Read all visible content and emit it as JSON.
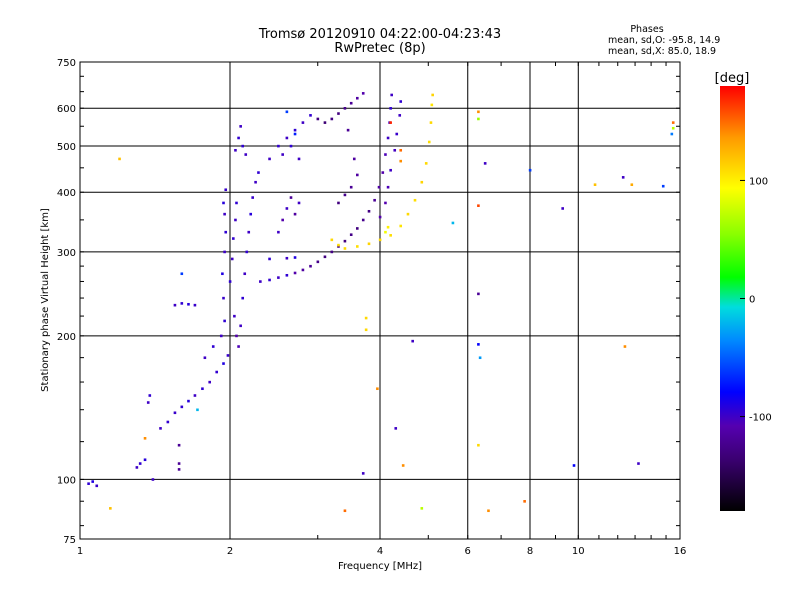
{
  "chart_data": {
    "type": "scatter",
    "title": "Tromsø 20120910 04:22:00-04:23:43",
    "subtitle": "RwPretec (8p)",
    "xlabel": "Frequency [MHz]",
    "ylabel": "Stationary phase Virtual Height [km]",
    "x_scale": "log",
    "y_scale": "log",
    "xlim": [
      1,
      16
    ],
    "ylim": [
      75,
      750
    ],
    "x_ticks": [
      {
        "value": 1,
        "label": "1"
      },
      {
        "value": 2,
        "label": "2"
      },
      {
        "value": 4,
        "label": "4"
      },
      {
        "value": 6,
        "label": "6"
      },
      {
        "value": 8,
        "label": "8"
      },
      {
        "value": 10,
        "label": "10"
      },
      {
        "value": 16,
        "label": "16"
      }
    ],
    "y_ticks": [
      {
        "value": 75,
        "label": "75"
      },
      {
        "value": 100,
        "label": "100"
      },
      {
        "value": 200,
        "label": "200"
      },
      {
        "value": 300,
        "label": "300"
      },
      {
        "value": 400,
        "label": "400"
      },
      {
        "value": 500,
        "label": "500"
      },
      {
        "value": 600,
        "label": "600"
      },
      {
        "value": 750,
        "label": "750"
      }
    ],
    "grid": true,
    "legend": {
      "title": "Phases",
      "lines": [
        "mean, sd,O: -95.8, 14.9",
        "mean, sd,X:  85.0, 18.9"
      ]
    },
    "colorbar": {
      "label": "[deg]",
      "min": -180,
      "max": 180,
      "ticks": [
        {
          "value": 100,
          "label": "100"
        },
        {
          "value": 0,
          "label": "0"
        },
        {
          "value": -100,
          "label": "-100"
        }
      ]
    },
    "series": [
      {
        "values": [
          {
            "x": 1.04,
            "y": 98,
            "c": -95
          },
          {
            "x": 1.06,
            "y": 99,
            "c": -90
          },
          {
            "x": 1.08,
            "y": 97,
            "c": -98
          },
          {
            "x": 1.3,
            "y": 106,
            "c": -100
          },
          {
            "x": 1.32,
            "y": 108,
            "c": -95
          },
          {
            "x": 1.35,
            "y": 110,
            "c": -92
          },
          {
            "x": 1.37,
            "y": 145,
            "c": -100
          },
          {
            "x": 1.38,
            "y": 150,
            "c": -96
          },
          {
            "x": 1.45,
            "y": 128,
            "c": -100
          },
          {
            "x": 1.5,
            "y": 132,
            "c": -96
          },
          {
            "x": 1.55,
            "y": 138,
            "c": -98
          },
          {
            "x": 1.6,
            "y": 142,
            "c": -95
          },
          {
            "x": 1.65,
            "y": 146,
            "c": -92
          },
          {
            "x": 1.7,
            "y": 150,
            "c": -100
          },
          {
            "x": 1.76,
            "y": 155,
            "c": -95
          },
          {
            "x": 1.82,
            "y": 160,
            "c": -100
          },
          {
            "x": 1.88,
            "y": 168,
            "c": -96
          },
          {
            "x": 1.94,
            "y": 175,
            "c": -90
          },
          {
            "x": 1.98,
            "y": 182,
            "c": -98
          },
          {
            "x": 1.55,
            "y": 232,
            "c": -100
          },
          {
            "x": 1.6,
            "y": 234,
            "c": -95
          },
          {
            "x": 1.65,
            "y": 233,
            "c": -92
          },
          {
            "x": 1.7,
            "y": 232,
            "c": -98
          },
          {
            "x": 1.6,
            "y": 270,
            "c": -60
          },
          {
            "x": 1.58,
            "y": 118,
            "c": -120
          },
          {
            "x": 1.35,
            "y": 122,
            "c": 140
          },
          {
            "x": 1.4,
            "y": 100,
            "c": -100
          },
          {
            "x": 1.15,
            "y": 87,
            "c": 120
          },
          {
            "x": 1.2,
            "y": 470,
            "c": 120
          },
          {
            "x": 1.72,
            "y": 140,
            "c": -20
          },
          {
            "x": 1.58,
            "y": 108,
            "c": -120
          },
          {
            "x": 1.58,
            "y": 105,
            "c": -120
          },
          {
            "x": 1.78,
            "y": 180,
            "c": -100
          },
          {
            "x": 1.85,
            "y": 190,
            "c": -95
          },
          {
            "x": 1.92,
            "y": 200,
            "c": -100
          },
          {
            "x": 1.95,
            "y": 215,
            "c": -95
          },
          {
            "x": 1.94,
            "y": 240,
            "c": -98
          },
          {
            "x": 1.93,
            "y": 270,
            "c": -90
          },
          {
            "x": 1.95,
            "y": 300,
            "c": -100
          },
          {
            "x": 1.96,
            "y": 330,
            "c": -95
          },
          {
            "x": 1.95,
            "y": 360,
            "c": -100
          },
          {
            "x": 1.94,
            "y": 380,
            "c": -92
          },
          {
            "x": 1.96,
            "y": 405,
            "c": -98
          },
          {
            "x": 2.0,
            "y": 260,
            "c": -95
          },
          {
            "x": 2.02,
            "y": 290,
            "c": -100
          },
          {
            "x": 2.03,
            "y": 320,
            "c": -96
          },
          {
            "x": 2.05,
            "y": 350,
            "c": -100
          },
          {
            "x": 2.06,
            "y": 380,
            "c": -95
          },
          {
            "x": 2.04,
            "y": 220,
            "c": -100
          },
          {
            "x": 2.06,
            "y": 200,
            "c": -110
          },
          {
            "x": 2.08,
            "y": 190,
            "c": -105
          },
          {
            "x": 2.1,
            "y": 210,
            "c": -100
          },
          {
            "x": 2.12,
            "y": 240,
            "c": -95
          },
          {
            "x": 2.14,
            "y": 270,
            "c": -100
          },
          {
            "x": 2.16,
            "y": 300,
            "c": -96
          },
          {
            "x": 2.18,
            "y": 330,
            "c": -100
          },
          {
            "x": 2.2,
            "y": 360,
            "c": -92
          },
          {
            "x": 2.22,
            "y": 390,
            "c": -98
          },
          {
            "x": 2.25,
            "y": 420,
            "c": -100
          },
          {
            "x": 2.28,
            "y": 440,
            "c": -95
          },
          {
            "x": 2.05,
            "y": 490,
            "c": -100
          },
          {
            "x": 2.08,
            "y": 520,
            "c": -96
          },
          {
            "x": 2.1,
            "y": 550,
            "c": -100
          },
          {
            "x": 2.12,
            "y": 500,
            "c": -95
          },
          {
            "x": 2.15,
            "y": 480,
            "c": -100
          },
          {
            "x": 2.3,
            "y": 260,
            "c": -100
          },
          {
            "x": 2.4,
            "y": 262,
            "c": -96
          },
          {
            "x": 2.5,
            "y": 265,
            "c": -100
          },
          {
            "x": 2.6,
            "y": 268,
            "c": -95
          },
          {
            "x": 2.7,
            "y": 271,
            "c": -110
          },
          {
            "x": 2.8,
            "y": 275,
            "c": -115
          },
          {
            "x": 2.9,
            "y": 280,
            "c": -120
          },
          {
            "x": 3.0,
            "y": 286,
            "c": -125
          },
          {
            "x": 3.1,
            "y": 293,
            "c": -130
          },
          {
            "x": 3.2,
            "y": 300,
            "c": -128
          },
          {
            "x": 3.3,
            "y": 308,
            "c": -125
          },
          {
            "x": 3.4,
            "y": 316,
            "c": -130
          },
          {
            "x": 3.5,
            "y": 326,
            "c": -126
          },
          {
            "x": 3.6,
            "y": 336,
            "c": -130
          },
          {
            "x": 3.7,
            "y": 350,
            "c": -124
          },
          {
            "x": 3.8,
            "y": 365,
            "c": -128
          },
          {
            "x": 3.9,
            "y": 385,
            "c": -120
          },
          {
            "x": 3.98,
            "y": 410,
            "c": -115
          },
          {
            "x": 4.05,
            "y": 440,
            "c": -110
          },
          {
            "x": 4.1,
            "y": 480,
            "c": -105
          },
          {
            "x": 4.15,
            "y": 520,
            "c": -100
          },
          {
            "x": 4.18,
            "y": 560,
            "c": -100
          },
          {
            "x": 4.2,
            "y": 600,
            "c": -95
          },
          {
            "x": 4.22,
            "y": 640,
            "c": -100
          },
          {
            "x": 2.4,
            "y": 290,
            "c": -95
          },
          {
            "x": 2.6,
            "y": 291,
            "c": -100
          },
          {
            "x": 2.7,
            "y": 292,
            "c": -90
          },
          {
            "x": 2.5,
            "y": 330,
            "c": -100
          },
          {
            "x": 2.55,
            "y": 350,
            "c": -110
          },
          {
            "x": 2.6,
            "y": 370,
            "c": -100
          },
          {
            "x": 2.65,
            "y": 390,
            "c": -120
          },
          {
            "x": 2.7,
            "y": 360,
            "c": -115
          },
          {
            "x": 2.75,
            "y": 380,
            "c": -100
          },
          {
            "x": 2.4,
            "y": 470,
            "c": -100
          },
          {
            "x": 2.5,
            "y": 500,
            "c": -96
          },
          {
            "x": 2.6,
            "y": 520,
            "c": -100
          },
          {
            "x": 2.7,
            "y": 540,
            "c": -95
          },
          {
            "x": 2.8,
            "y": 560,
            "c": -100
          },
          {
            "x": 2.9,
            "y": 580,
            "c": -96
          },
          {
            "x": 2.55,
            "y": 480,
            "c": -100
          },
          {
            "x": 2.65,
            "y": 500,
            "c": -95
          },
          {
            "x": 2.75,
            "y": 470,
            "c": -100
          },
          {
            "x": 2.6,
            "y": 590,
            "c": -60
          },
          {
            "x": 2.7,
            "y": 530,
            "c": -70
          },
          {
            "x": 3.0,
            "y": 570,
            "c": -130
          },
          {
            "x": 3.1,
            "y": 560,
            "c": -135
          },
          {
            "x": 3.2,
            "y": 570,
            "c": -128
          },
          {
            "x": 3.3,
            "y": 585,
            "c": -130
          },
          {
            "x": 3.4,
            "y": 600,
            "c": -125
          },
          {
            "x": 3.5,
            "y": 615,
            "c": -120
          },
          {
            "x": 3.6,
            "y": 630,
            "c": -115
          },
          {
            "x": 3.7,
            "y": 645,
            "c": -110
          },
          {
            "x": 3.3,
            "y": 380,
            "c": -130
          },
          {
            "x": 3.4,
            "y": 395,
            "c": -125
          },
          {
            "x": 3.5,
            "y": 410,
            "c": -120
          },
          {
            "x": 3.6,
            "y": 435,
            "c": -115
          },
          {
            "x": 3.45,
            "y": 540,
            "c": -120
          },
          {
            "x": 3.55,
            "y": 470,
            "c": -115
          },
          {
            "x": 4.0,
            "y": 355,
            "c": -110
          },
          {
            "x": 4.1,
            "y": 380,
            "c": -108
          },
          {
            "x": 4.15,
            "y": 410,
            "c": -105
          },
          {
            "x": 4.2,
            "y": 445,
            "c": -100
          },
          {
            "x": 4.28,
            "y": 490,
            "c": -102
          },
          {
            "x": 4.32,
            "y": 530,
            "c": -98
          },
          {
            "x": 4.38,
            "y": 580,
            "c": -100
          },
          {
            "x": 4.4,
            "y": 620,
            "c": -95
          },
          {
            "x": 3.4,
            "y": 305,
            "c": 110
          },
          {
            "x": 3.6,
            "y": 308,
            "c": 108
          },
          {
            "x": 3.8,
            "y": 312,
            "c": 112
          },
          {
            "x": 4.0,
            "y": 318,
            "c": 110
          },
          {
            "x": 4.2,
            "y": 325,
            "c": 108
          },
          {
            "x": 4.4,
            "y": 340,
            "c": 105
          },
          {
            "x": 4.55,
            "y": 360,
            "c": 110
          },
          {
            "x": 4.7,
            "y": 385,
            "c": 108
          },
          {
            "x": 4.85,
            "y": 420,
            "c": 112
          },
          {
            "x": 4.95,
            "y": 460,
            "c": 110
          },
          {
            "x": 5.02,
            "y": 510,
            "c": 108
          },
          {
            "x": 5.06,
            "y": 560,
            "c": 110
          },
          {
            "x": 5.08,
            "y": 610,
            "c": 105
          },
          {
            "x": 5.1,
            "y": 640,
            "c": 112
          },
          {
            "x": 3.2,
            "y": 318,
            "c": 110
          },
          {
            "x": 3.3,
            "y": 310,
            "c": 108
          },
          {
            "x": 3.75,
            "y": 218,
            "c": 110
          },
          {
            "x": 3.75,
            "y": 206,
            "c": 110
          },
          {
            "x": 4.2,
            "y": 560,
            "c": 170
          },
          {
            "x": 4.4,
            "y": 490,
            "c": 150
          },
          {
            "x": 4.4,
            "y": 465,
            "c": 140
          },
          {
            "x": 4.1,
            "y": 330,
            "c": 90
          },
          {
            "x": 4.15,
            "y": 338,
            "c": 100
          },
          {
            "x": 3.95,
            "y": 155,
            "c": 140
          },
          {
            "x": 4.45,
            "y": 107,
            "c": 140
          },
          {
            "x": 4.85,
            "y": 87,
            "c": 70
          },
          {
            "x": 4.65,
            "y": 195,
            "c": -100
          },
          {
            "x": 4.3,
            "y": 128,
            "c": -100
          },
          {
            "x": 3.7,
            "y": 103,
            "c": -100
          },
          {
            "x": 3.4,
            "y": 86,
            "c": 150
          },
          {
            "x": 5.6,
            "y": 345,
            "c": -20
          },
          {
            "x": 6.3,
            "y": 590,
            "c": 140
          },
          {
            "x": 6.3,
            "y": 570,
            "c": 60
          },
          {
            "x": 6.5,
            "y": 460,
            "c": -100
          },
          {
            "x": 6.3,
            "y": 375,
            "c": 160
          },
          {
            "x": 6.3,
            "y": 245,
            "c": -120
          },
          {
            "x": 6.3,
            "y": 192,
            "c": -80
          },
          {
            "x": 6.35,
            "y": 180,
            "c": -30
          },
          {
            "x": 6.3,
            "y": 118,
            "c": 110
          },
          {
            "x": 6.6,
            "y": 86,
            "c": 140
          },
          {
            "x": 7.8,
            "y": 90,
            "c": 150
          },
          {
            "x": 8.0,
            "y": 445,
            "c": -60
          },
          {
            "x": 9.3,
            "y": 370,
            "c": -100
          },
          {
            "x": 9.8,
            "y": 107,
            "c": -80
          },
          {
            "x": 10.8,
            "y": 415,
            "c": 120
          },
          {
            "x": 12.3,
            "y": 430,
            "c": -100
          },
          {
            "x": 12.4,
            "y": 190,
            "c": 140
          },
          {
            "x": 12.8,
            "y": 415,
            "c": 130
          },
          {
            "x": 13.2,
            "y": 108,
            "c": -100
          },
          {
            "x": 14.8,
            "y": 412,
            "c": -60
          },
          {
            "x": 15.5,
            "y": 560,
            "c": 150
          },
          {
            "x": 15.4,
            "y": 530,
            "c": -40
          },
          {
            "x": 15.5,
            "y": 545,
            "c": 70
          }
        ]
      }
    ]
  }
}
